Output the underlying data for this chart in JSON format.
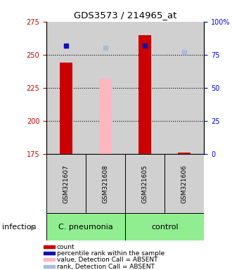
{
  "title": "GDS3573 / 214965_at",
  "samples": [
    "GSM321607",
    "GSM321608",
    "GSM321605",
    "GSM321606"
  ],
  "ylim_left": [
    175,
    275
  ],
  "ylim_right": [
    0,
    100
  ],
  "yticks_left": [
    175,
    200,
    225,
    250,
    275
  ],
  "yticks_right": [
    0,
    25,
    50,
    75,
    100
  ],
  "ytick_labels_right": [
    "0",
    "25",
    "50",
    "75",
    "100%"
  ],
  "count_values": [
    244,
    null,
    265,
    176
  ],
  "count_absent_values": [
    null,
    232,
    null,
    null
  ],
  "rank_values": [
    82,
    null,
    82,
    null
  ],
  "rank_absent_values": [
    null,
    80,
    null,
    77
  ],
  "bar_width": 0.32,
  "group_labels": [
    "C. pneumonia",
    "control"
  ],
  "infection_label": "infection",
  "count_color": "#CC0000",
  "count_absent_color": "#FFB6C1",
  "rank_color": "#1111AA",
  "rank_absent_color": "#AABBDD",
  "bg_sample_color": "#D0D0D0",
  "group_color": "#90EE90",
  "legend_items": [
    {
      "label": "count",
      "color": "#CC0000"
    },
    {
      "label": "percentile rank within the sample",
      "color": "#1111AA"
    },
    {
      "label": "value, Detection Call = ABSENT",
      "color": "#FFB6C1"
    },
    {
      "label": "rank, Detection Call = ABSENT",
      "color": "#AABBDD"
    }
  ],
  "title_fontsize": 9.5,
  "tick_fontsize": 7,
  "sample_label_fontsize": 6.5,
  "group_label_fontsize": 8,
  "legend_fontsize": 6.5,
  "marker_size": 5,
  "infection_fontsize": 8
}
